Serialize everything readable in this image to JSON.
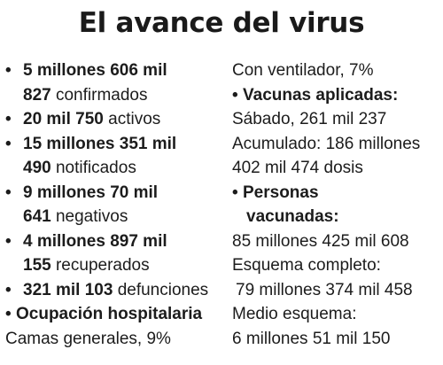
{
  "title": "El avance del virus",
  "bullet_glyph": "•",
  "left": {
    "confirmados": {
      "num_line1": "5 millones 606 mil",
      "num_line2": "827",
      "label": "confirmados"
    },
    "activos": {
      "num": "20 mil 750",
      "label": "activos"
    },
    "notificados": {
      "num_line1": "15 millones 351 mil",
      "num_line2": "490",
      "label": "notificados"
    },
    "negativos": {
      "num_line1": "9 millones 70 mil",
      "num_line2": "641",
      "label": "negativos"
    },
    "recuperados": {
      "num_line1": "4 millones 897 mil",
      "num_line2": "155",
      "label": "recuperados"
    },
    "defunciones": {
      "num": "321 mil 103",
      "label": "defunciones"
    },
    "ocupacion": {
      "heading": "Ocupación hospitalaria",
      "camas_generales": "Camas generales, 9%"
    }
  },
  "right": {
    "con_ventilador": "Con ventilador, 7%",
    "vacunas": {
      "heading": "Vacunas aplicadas:",
      "sabado": "Sábado, 261 mil 237",
      "acumulado_line1": "Acumulado: 186 millones",
      "acumulado_line2": "402 mil 474 dosis"
    },
    "personas": {
      "heading_line1": "Personas",
      "heading_line2": "vacunadas:",
      "total": "85 millones 425 mil 608",
      "esquema_completo_label": "Esquema completo:",
      "esquema_completo_value": "79 millones 374 mil 458",
      "medio_esquema_label": "Medio esquema:",
      "medio_esquema_value": "6 millones 51 mil 150"
    }
  }
}
